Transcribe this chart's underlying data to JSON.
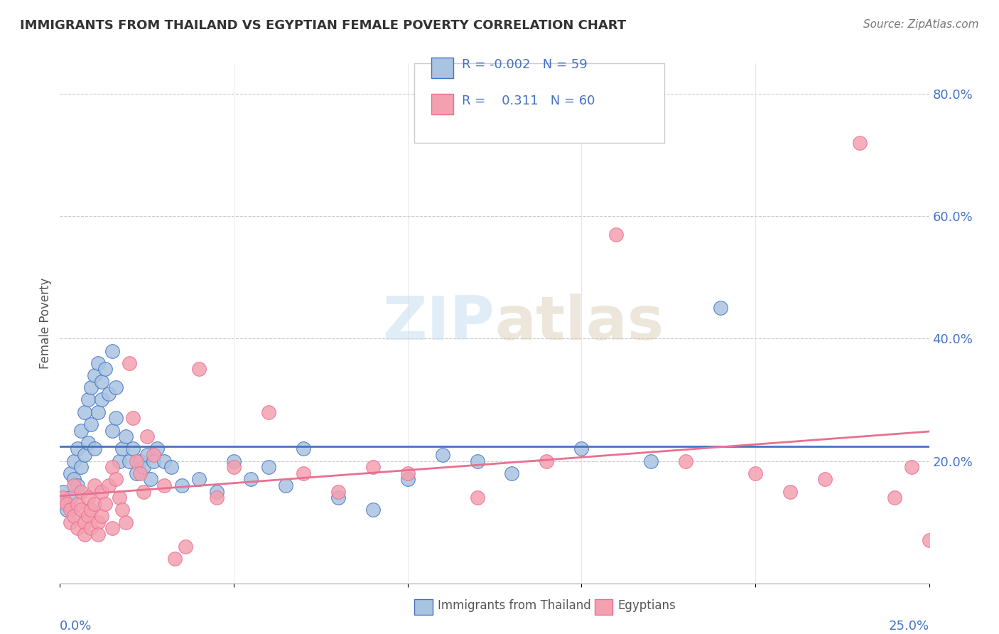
{
  "title": "IMMIGRANTS FROM THAILAND VS EGYPTIAN FEMALE POVERTY CORRELATION CHART",
  "source": "Source: ZipAtlas.com",
  "ylabel": "Female Poverty",
  "right_yticks": [
    "80.0%",
    "60.0%",
    "40.0%",
    "20.0%"
  ],
  "right_ytick_vals": [
    0.8,
    0.6,
    0.4,
    0.2
  ],
  "xlim": [
    0.0,
    0.25
  ],
  "ylim": [
    0.0,
    0.85
  ],
  "color_blue": "#a8c4e0",
  "color_pink": "#f4a0b0",
  "line_blue": "#4472c4",
  "line_pink": "#e87090",
  "watermark_zip": "ZIP",
  "watermark_atlas": "atlas",
  "legend_label1": "Immigrants from Thailand",
  "legend_label2": "Egyptians",
  "thai_x": [
    0.001,
    0.002,
    0.003,
    0.003,
    0.004,
    0.004,
    0.005,
    0.005,
    0.006,
    0.006,
    0.007,
    0.007,
    0.008,
    0.008,
    0.009,
    0.009,
    0.01,
    0.01,
    0.011,
    0.011,
    0.012,
    0.012,
    0.013,
    0.014,
    0.015,
    0.015,
    0.016,
    0.016,
    0.017,
    0.018,
    0.019,
    0.02,
    0.021,
    0.022,
    0.023,
    0.024,
    0.025,
    0.026,
    0.027,
    0.028,
    0.03,
    0.032,
    0.035,
    0.04,
    0.045,
    0.05,
    0.055,
    0.06,
    0.065,
    0.07,
    0.08,
    0.09,
    0.1,
    0.11,
    0.12,
    0.13,
    0.15,
    0.17,
    0.19
  ],
  "thai_y": [
    0.15,
    0.12,
    0.18,
    0.14,
    0.2,
    0.17,
    0.22,
    0.16,
    0.25,
    0.19,
    0.28,
    0.21,
    0.3,
    0.23,
    0.32,
    0.26,
    0.34,
    0.22,
    0.36,
    0.28,
    0.33,
    0.3,
    0.35,
    0.31,
    0.38,
    0.25,
    0.32,
    0.27,
    0.2,
    0.22,
    0.24,
    0.2,
    0.22,
    0.18,
    0.2,
    0.19,
    0.21,
    0.17,
    0.2,
    0.22,
    0.2,
    0.19,
    0.16,
    0.17,
    0.15,
    0.2,
    0.17,
    0.19,
    0.16,
    0.22,
    0.14,
    0.12,
    0.17,
    0.21,
    0.2,
    0.18,
    0.22,
    0.2,
    0.45
  ],
  "egypt_x": [
    0.001,
    0.002,
    0.003,
    0.003,
    0.004,
    0.004,
    0.005,
    0.005,
    0.006,
    0.006,
    0.007,
    0.007,
    0.008,
    0.008,
    0.009,
    0.009,
    0.01,
    0.01,
    0.011,
    0.011,
    0.012,
    0.012,
    0.013,
    0.014,
    0.015,
    0.015,
    0.016,
    0.017,
    0.018,
    0.019,
    0.02,
    0.021,
    0.022,
    0.023,
    0.024,
    0.025,
    0.027,
    0.03,
    0.033,
    0.036,
    0.04,
    0.045,
    0.05,
    0.06,
    0.07,
    0.08,
    0.09,
    0.1,
    0.12,
    0.14,
    0.16,
    0.18,
    0.2,
    0.21,
    0.22,
    0.23,
    0.24,
    0.245,
    0.25,
    0.255
  ],
  "egypt_y": [
    0.14,
    0.13,
    0.12,
    0.1,
    0.16,
    0.11,
    0.13,
    0.09,
    0.15,
    0.12,
    0.1,
    0.08,
    0.14,
    0.11,
    0.12,
    0.09,
    0.16,
    0.13,
    0.1,
    0.08,
    0.15,
    0.11,
    0.13,
    0.16,
    0.19,
    0.09,
    0.17,
    0.14,
    0.12,
    0.1,
    0.36,
    0.27,
    0.2,
    0.18,
    0.15,
    0.24,
    0.21,
    0.16,
    0.04,
    0.06,
    0.35,
    0.14,
    0.19,
    0.28,
    0.18,
    0.15,
    0.19,
    0.18,
    0.14,
    0.2,
    0.57,
    0.2,
    0.18,
    0.15,
    0.17,
    0.72,
    0.14,
    0.19,
    0.07,
    0.07
  ]
}
